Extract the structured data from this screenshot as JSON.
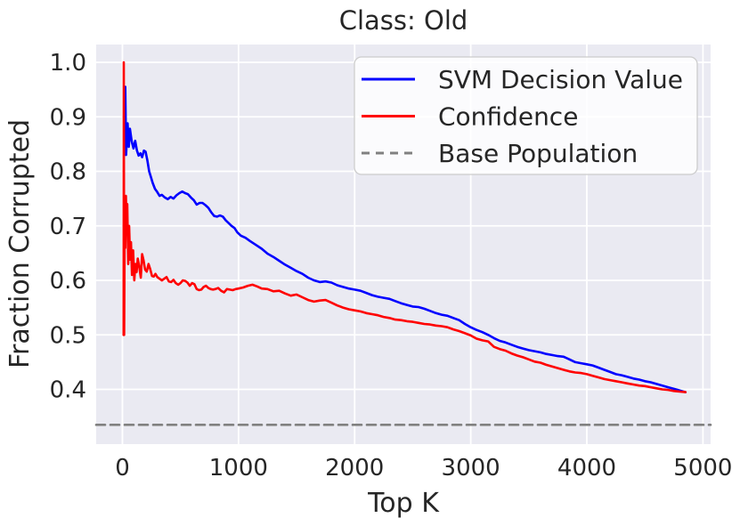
{
  "figure": {
    "title": "Class: Old",
    "background_color": "#ffffff",
    "axes_background_color": "#eaeaf2",
    "grid_color": "#ffffff",
    "text_color": "#262626"
  },
  "chart_data": {
    "type": "line",
    "title": "Class: Old",
    "xlabel": "Top K",
    "ylabel": "Fraction Corrupted",
    "xlim": [
      -226,
      5066
    ],
    "ylim": [
      0.2996,
      1.0327
    ],
    "x_ticks": [
      0,
      1000,
      2000,
      3000,
      4000,
      5000
    ],
    "y_ticks": [
      0.4,
      0.5,
      0.6,
      0.7,
      0.8,
      0.9,
      1.0
    ],
    "grid": true,
    "legend_position": "upper right",
    "series": [
      {
        "name": "SVM Decision Value",
        "color": "#0000ff",
        "style": "solid",
        "points": [
          [
            25,
            0.955
          ],
          [
            32,
            0.83
          ],
          [
            45,
            0.888
          ],
          [
            55,
            0.845
          ],
          [
            65,
            0.878
          ],
          [
            80,
            0.855
          ],
          [
            95,
            0.842
          ],
          [
            110,
            0.856
          ],
          [
            125,
            0.838
          ],
          [
            140,
            0.829
          ],
          [
            155,
            0.833
          ],
          [
            170,
            0.826
          ],
          [
            185,
            0.838
          ],
          [
            200,
            0.836
          ],
          [
            215,
            0.82
          ],
          [
            230,
            0.8
          ],
          [
            245,
            0.79
          ],
          [
            260,
            0.779
          ],
          [
            280,
            0.768
          ],
          [
            300,
            0.762
          ],
          [
            320,
            0.755
          ],
          [
            340,
            0.757
          ],
          [
            365,
            0.752
          ],
          [
            390,
            0.749
          ],
          [
            415,
            0.753
          ],
          [
            440,
            0.75
          ],
          [
            465,
            0.756
          ],
          [
            490,
            0.76
          ],
          [
            515,
            0.763
          ],
          [
            540,
            0.76
          ],
          [
            565,
            0.758
          ],
          [
            590,
            0.752
          ],
          [
            615,
            0.747
          ],
          [
            640,
            0.739
          ],
          [
            665,
            0.742
          ],
          [
            690,
            0.742
          ],
          [
            715,
            0.738
          ],
          [
            740,
            0.733
          ],
          [
            765,
            0.725
          ],
          [
            790,
            0.718
          ],
          [
            815,
            0.717
          ],
          [
            840,
            0.719
          ],
          [
            865,
            0.717
          ],
          [
            890,
            0.71
          ],
          [
            915,
            0.705
          ],
          [
            940,
            0.7
          ],
          [
            965,
            0.696
          ],
          [
            990,
            0.688
          ],
          [
            1020,
            0.682
          ],
          [
            1060,
            0.678
          ],
          [
            1100,
            0.672
          ],
          [
            1150,
            0.665
          ],
          [
            1200,
            0.658
          ],
          [
            1250,
            0.649
          ],
          [
            1300,
            0.643
          ],
          [
            1350,
            0.636
          ],
          [
            1400,
            0.629
          ],
          [
            1450,
            0.623
          ],
          [
            1500,
            0.617
          ],
          [
            1550,
            0.612
          ],
          [
            1600,
            0.605
          ],
          [
            1650,
            0.6
          ],
          [
            1700,
            0.597
          ],
          [
            1750,
            0.598
          ],
          [
            1800,
            0.596
          ],
          [
            1850,
            0.591
          ],
          [
            1900,
            0.588
          ],
          [
            1950,
            0.585
          ],
          [
            2000,
            0.583
          ],
          [
            2050,
            0.581
          ],
          [
            2100,
            0.577
          ],
          [
            2150,
            0.573
          ],
          [
            2200,
            0.57
          ],
          [
            2250,
            0.568
          ],
          [
            2300,
            0.566
          ],
          [
            2350,
            0.562
          ],
          [
            2400,
            0.558
          ],
          [
            2450,
            0.555
          ],
          [
            2500,
            0.552
          ],
          [
            2550,
            0.551
          ],
          [
            2600,
            0.548
          ],
          [
            2650,
            0.544
          ],
          [
            2700,
            0.54
          ],
          [
            2750,
            0.537
          ],
          [
            2800,
            0.535
          ],
          [
            2850,
            0.531
          ],
          [
            2900,
            0.527
          ],
          [
            2950,
            0.52
          ],
          [
            3000,
            0.514
          ],
          [
            3050,
            0.509
          ],
          [
            3100,
            0.505
          ],
          [
            3150,
            0.5
          ],
          [
            3200,
            0.494
          ],
          [
            3250,
            0.489
          ],
          [
            3300,
            0.486
          ],
          [
            3350,
            0.482
          ],
          [
            3400,
            0.478
          ],
          [
            3450,
            0.475
          ],
          [
            3500,
            0.472
          ],
          [
            3550,
            0.47
          ],
          [
            3600,
            0.468
          ],
          [
            3650,
            0.465
          ],
          [
            3700,
            0.463
          ],
          [
            3750,
            0.461
          ],
          [
            3800,
            0.46
          ],
          [
            3850,
            0.455
          ],
          [
            3900,
            0.45
          ],
          [
            3950,
            0.448
          ],
          [
            4000,
            0.446
          ],
          [
            4050,
            0.444
          ],
          [
            4100,
            0.44
          ],
          [
            4150,
            0.436
          ],
          [
            4200,
            0.432
          ],
          [
            4250,
            0.428
          ],
          [
            4300,
            0.426
          ],
          [
            4350,
            0.423
          ],
          [
            4400,
            0.42
          ],
          [
            4450,
            0.418
          ],
          [
            4500,
            0.415
          ],
          [
            4550,
            0.413
          ],
          [
            4600,
            0.41
          ],
          [
            4650,
            0.407
          ],
          [
            4700,
            0.404
          ],
          [
            4750,
            0.401
          ],
          [
            4800,
            0.398
          ],
          [
            4850,
            0.395
          ]
        ]
      },
      {
        "name": "Confidence",
        "color": "#ff0000",
        "style": "solid",
        "points": [
          [
            10,
            0.5
          ],
          [
            12,
            1.0
          ],
          [
            15,
            0.5
          ],
          [
            20,
            0.74
          ],
          [
            25,
            0.66
          ],
          [
            30,
            0.755
          ],
          [
            36,
            0.69
          ],
          [
            42,
            0.74
          ],
          [
            50,
            0.63
          ],
          [
            58,
            0.7
          ],
          [
            66,
            0.638
          ],
          [
            74,
            0.67
          ],
          [
            82,
            0.61
          ],
          [
            92,
            0.655
          ],
          [
            102,
            0.6
          ],
          [
            112,
            0.63
          ],
          [
            122,
            0.615
          ],
          [
            132,
            0.64
          ],
          [
            145,
            0.625
          ],
          [
            158,
            0.605
          ],
          [
            170,
            0.648
          ],
          [
            182,
            0.637
          ],
          [
            195,
            0.62
          ],
          [
            210,
            0.616
          ],
          [
            225,
            0.63
          ],
          [
            240,
            0.62
          ],
          [
            255,
            0.608
          ],
          [
            270,
            0.607
          ],
          [
            285,
            0.612
          ],
          [
            300,
            0.606
          ],
          [
            320,
            0.603
          ],
          [
            340,
            0.6
          ],
          [
            360,
            0.603
          ],
          [
            380,
            0.606
          ],
          [
            400,
            0.598
          ],
          [
            420,
            0.597
          ],
          [
            440,
            0.601
          ],
          [
            460,
            0.595
          ],
          [
            480,
            0.592
          ],
          [
            500,
            0.595
          ],
          [
            520,
            0.6
          ],
          [
            540,
            0.599
          ],
          [
            560,
            0.596
          ],
          [
            580,
            0.59
          ],
          [
            600,
            0.595
          ],
          [
            620,
            0.593
          ],
          [
            640,
            0.584
          ],
          [
            660,
            0.582
          ],
          [
            680,
            0.583
          ],
          [
            700,
            0.588
          ],
          [
            720,
            0.59
          ],
          [
            740,
            0.586
          ],
          [
            760,
            0.584
          ],
          [
            780,
            0.583
          ],
          [
            800,
            0.584
          ],
          [
            825,
            0.586
          ],
          [
            850,
            0.581
          ],
          [
            875,
            0.578
          ],
          [
            900,
            0.584
          ],
          [
            925,
            0.583
          ],
          [
            950,
            0.582
          ],
          [
            975,
            0.584
          ],
          [
            1000,
            0.585
          ],
          [
            1040,
            0.587
          ],
          [
            1080,
            0.59
          ],
          [
            1120,
            0.592
          ],
          [
            1160,
            0.589
          ],
          [
            1200,
            0.585
          ],
          [
            1250,
            0.584
          ],
          [
            1300,
            0.58
          ],
          [
            1350,
            0.581
          ],
          [
            1400,
            0.576
          ],
          [
            1450,
            0.572
          ],
          [
            1500,
            0.574
          ],
          [
            1550,
            0.569
          ],
          [
            1600,
            0.564
          ],
          [
            1650,
            0.561
          ],
          [
            1700,
            0.563
          ],
          [
            1750,
            0.564
          ],
          [
            1800,
            0.559
          ],
          [
            1850,
            0.554
          ],
          [
            1900,
            0.55
          ],
          [
            1950,
            0.547
          ],
          [
            2000,
            0.545
          ],
          [
            2050,
            0.543
          ],
          [
            2100,
            0.54
          ],
          [
            2150,
            0.538
          ],
          [
            2200,
            0.536
          ],
          [
            2250,
            0.533
          ],
          [
            2300,
            0.531
          ],
          [
            2350,
            0.528
          ],
          [
            2400,
            0.527
          ],
          [
            2450,
            0.525
          ],
          [
            2500,
            0.524
          ],
          [
            2550,
            0.522
          ],
          [
            2600,
            0.52
          ],
          [
            2650,
            0.519
          ],
          [
            2700,
            0.517
          ],
          [
            2750,
            0.516
          ],
          [
            2800,
            0.514
          ],
          [
            2850,
            0.51
          ],
          [
            2900,
            0.507
          ],
          [
            2950,
            0.503
          ],
          [
            3000,
            0.499
          ],
          [
            3050,
            0.493
          ],
          [
            3100,
            0.49
          ],
          [
            3150,
            0.488
          ],
          [
            3200,
            0.478
          ],
          [
            3250,
            0.474
          ],
          [
            3300,
            0.471
          ],
          [
            3350,
            0.466
          ],
          [
            3400,
            0.462
          ],
          [
            3450,
            0.459
          ],
          [
            3500,
            0.455
          ],
          [
            3550,
            0.451
          ],
          [
            3600,
            0.449
          ],
          [
            3650,
            0.445
          ],
          [
            3700,
            0.442
          ],
          [
            3750,
            0.439
          ],
          [
            3800,
            0.436
          ],
          [
            3850,
            0.433
          ],
          [
            3900,
            0.431
          ],
          [
            3950,
            0.43
          ],
          [
            4000,
            0.428
          ],
          [
            4050,
            0.425
          ],
          [
            4100,
            0.422
          ],
          [
            4150,
            0.419
          ],
          [
            4200,
            0.417
          ],
          [
            4250,
            0.415
          ],
          [
            4300,
            0.413
          ],
          [
            4350,
            0.411
          ],
          [
            4400,
            0.409
          ],
          [
            4450,
            0.407
          ],
          [
            4500,
            0.406
          ],
          [
            4550,
            0.404
          ],
          [
            4600,
            0.402
          ],
          [
            4650,
            0.4
          ],
          [
            4700,
            0.399
          ],
          [
            4750,
            0.397
          ],
          [
            4800,
            0.396
          ],
          [
            4850,
            0.395
          ]
        ]
      },
      {
        "name": "Base Population",
        "color": "#808080",
        "style": "dashed",
        "value": 0.335
      }
    ]
  }
}
